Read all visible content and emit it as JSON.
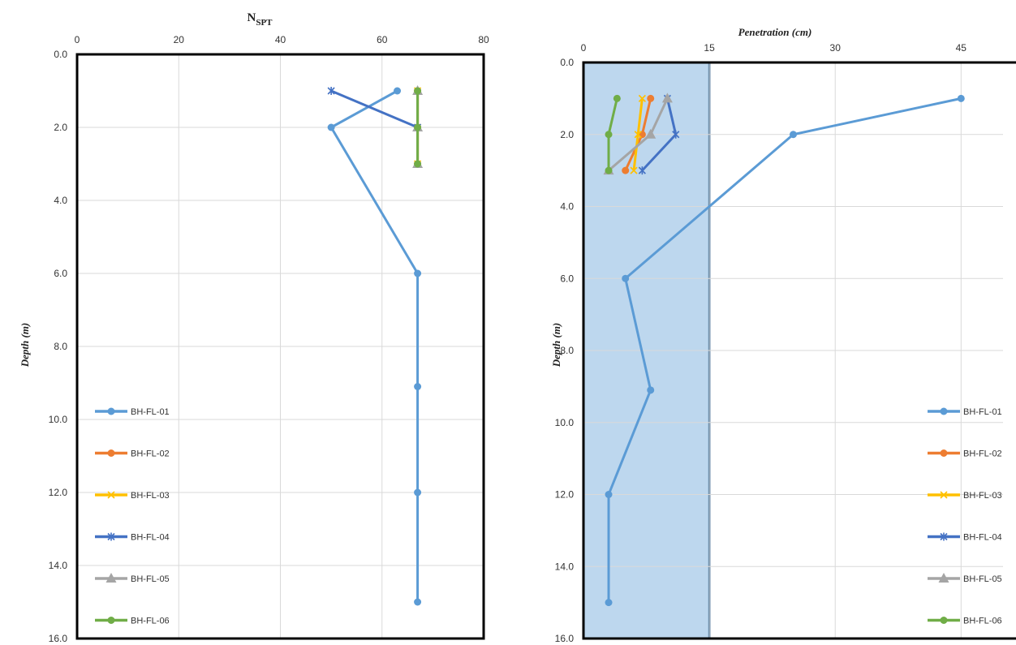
{
  "colors": {
    "BH-FL-01": "#5b9bd5",
    "BH-FL-02": "#ed7d31",
    "BH-FL-03": "#ffc000",
    "BH-FL-04": "#4472c4",
    "BH-FL-05": "#a5a5a5",
    "BH-FL-06": "#70ad47",
    "shade": "#bdd7ee",
    "shade_border": "#2e5f8a",
    "grid": "#d9d9d9",
    "frame": "#000000"
  },
  "chart_data": [
    {
      "type": "line",
      "title": "",
      "xlabel": "N",
      "xlabel_sub": "SPT",
      "ylabel": "Depth (m)",
      "xlim": [
        0,
        80
      ],
      "ylim": [
        16,
        0
      ],
      "xticks": [
        "0",
        "20",
        "40",
        "60",
        "80"
      ],
      "xtick_values": [
        0,
        20,
        40,
        60,
        80
      ],
      "yticks": [
        "0.0",
        "2.0",
        "4.0",
        "6.0",
        "8.0",
        "10.0",
        "12.0",
        "14.0",
        "16.0"
      ],
      "ytick_values": [
        0,
        2,
        4,
        6,
        8,
        10,
        12,
        14,
        16
      ],
      "grid": true,
      "legend_position": "bottom-left",
      "series": [
        {
          "name": "BH-FL-01",
          "marker": "circle",
          "points": [
            [
              63,
              1
            ],
            [
              50,
              2
            ],
            [
              67,
              6
            ],
            [
              67,
              9.1
            ],
            [
              67,
              12
            ],
            [
              67,
              15
            ]
          ]
        },
        {
          "name": "BH-FL-02",
          "marker": "circle",
          "points": [
            [
              67,
              1
            ],
            [
              67,
              2
            ],
            [
              67,
              3
            ]
          ]
        },
        {
          "name": "BH-FL-03",
          "marker": "x",
          "points": [
            [
              67,
              1
            ],
            [
              67,
              2
            ],
            [
              67,
              3
            ]
          ]
        },
        {
          "name": "BH-FL-04",
          "marker": "star",
          "points": [
            [
              50,
              1
            ],
            [
              67,
              2
            ]
          ]
        },
        {
          "name": "BH-FL-05",
          "marker": "triangle",
          "points": [
            [
              67,
              1
            ],
            [
              67,
              2
            ],
            [
              67,
              3
            ]
          ]
        },
        {
          "name": "BH-FL-06",
          "marker": "circle",
          "points": [
            [
              67,
              1
            ],
            [
              67,
              2
            ],
            [
              67,
              3
            ]
          ]
        }
      ]
    },
    {
      "type": "line",
      "title": "",
      "xlabel": "Penetration (cm)",
      "ylabel": "Depth (m)",
      "xlim": [
        0,
        50
      ],
      "ylim": [
        16,
        0
      ],
      "xticks": [
        "0",
        "15",
        "30",
        "45"
      ],
      "xtick_values": [
        0,
        15,
        30,
        45
      ],
      "yticks": [
        "0.0",
        "2.0",
        "4.0",
        "6.0",
        "8.0",
        "10.0",
        "12.0",
        "14.0",
        "16.0"
      ],
      "ytick_values": [
        0,
        2,
        4,
        6,
        8,
        10,
        12,
        14,
        16
      ],
      "grid": true,
      "shaded_band_x": [
        0,
        15
      ],
      "legend_position": "bottom-right",
      "series": [
        {
          "name": "BH-FL-01",
          "marker": "circle",
          "points": [
            [
              45,
              1
            ],
            [
              25,
              2
            ],
            [
              5,
              6
            ],
            [
              8,
              9.1
            ],
            [
              3,
              12
            ],
            [
              3,
              15
            ]
          ]
        },
        {
          "name": "BH-FL-02",
          "marker": "circle",
          "points": [
            [
              8,
              1
            ],
            [
              7,
              2
            ],
            [
              5,
              3
            ]
          ]
        },
        {
          "name": "BH-FL-03",
          "marker": "x",
          "points": [
            [
              7,
              1
            ],
            [
              6.5,
              2
            ],
            [
              6,
              3
            ]
          ]
        },
        {
          "name": "BH-FL-04",
          "marker": "star",
          "points": [
            [
              10,
              1
            ],
            [
              11,
              2
            ],
            [
              7,
              3
            ]
          ]
        },
        {
          "name": "BH-FL-05",
          "marker": "triangle",
          "points": [
            [
              10,
              1
            ],
            [
              8,
              2
            ],
            [
              3,
              3
            ]
          ]
        },
        {
          "name": "BH-FL-06",
          "marker": "circle",
          "points": [
            [
              4,
              1
            ],
            [
              3,
              2
            ],
            [
              3,
              3
            ]
          ]
        }
      ]
    }
  ]
}
